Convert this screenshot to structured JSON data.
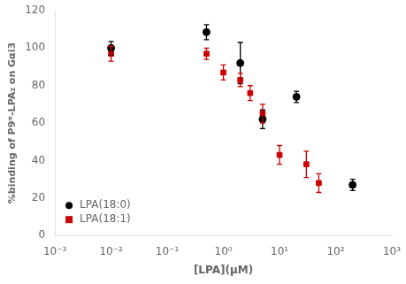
{
  "chart_data": {
    "type": "scatter",
    "xlabel": "[LPA](μM)",
    "ylabel": "%binding of P9*-LPA₂ on Gαi3",
    "log": "x",
    "xlim": [
      0.001,
      1000
    ],
    "xticks": [
      {
        "value": 0.001,
        "label": "10⁻³"
      },
      {
        "value": 0.01,
        "label": "10⁻²"
      },
      {
        "value": 0.1,
        "label": "10⁻¹"
      },
      {
        "value": 1,
        "label": "10⁰"
      },
      {
        "value": 10,
        "label": "10¹"
      },
      {
        "value": 100,
        "label": "10²"
      },
      {
        "value": 1000,
        "label": "10³"
      }
    ],
    "ylim": [
      0,
      120
    ],
    "yticks": [
      0,
      20,
      40,
      60,
      80,
      100,
      120
    ],
    "grid": false,
    "legend": "lower left",
    "series": [
      {
        "name": "LPA(18:0)",
        "color": "#000000",
        "marker": "circle",
        "x": [
          0.01,
          0.5,
          2.0,
          5.0,
          20.0,
          200.0
        ],
        "values": [
          100.0,
          108.5,
          92.0,
          62.0,
          74.0,
          27.0
        ],
        "errors": [
          3.5,
          4.0,
          11.0,
          5.0,
          3.0,
          3.0
        ]
      },
      {
        "name": "LPA(18:1)",
        "color": "#cc0000",
        "marker": "square",
        "x": [
          0.01,
          0.5,
          1.0,
          2.0,
          3.0,
          5.0,
          10.0,
          30.0,
          50.0
        ],
        "values": [
          97.0,
          97.0,
          87.0,
          83.0,
          76.0,
          65.0,
          43.0,
          38.0,
          28.0
        ],
        "errors": [
          4.0,
          3.0,
          4.0,
          3.5,
          4.0,
          5.0,
          5.0,
          7.0,
          5.0
        ]
      }
    ]
  }
}
